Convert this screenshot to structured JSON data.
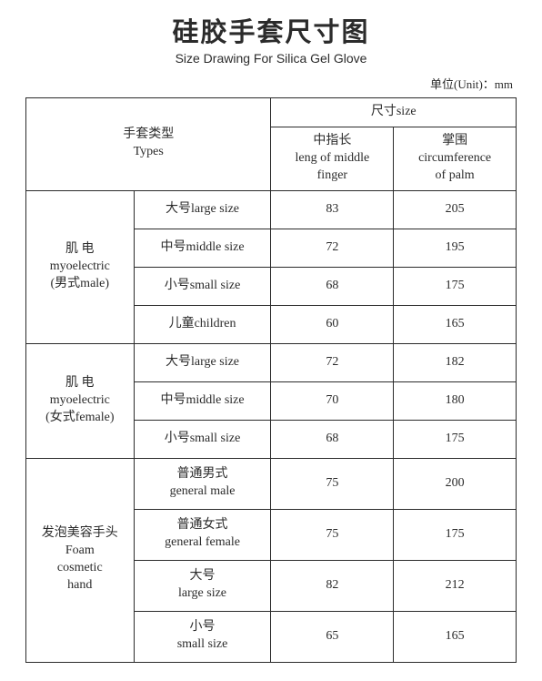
{
  "title_cn": "硅胶手套尺寸图",
  "title_en": "Size Drawing For Silica Gel Glove",
  "unit_label": "单位(Unit)：mm",
  "header": {
    "types_cn": "手套类型",
    "types_en": "Types",
    "size_cn_en": "尺寸size",
    "finger_cn": "中指长",
    "finger_en1": "leng of middle",
    "finger_en2": "finger",
    "palm_cn": "掌围",
    "palm_en1": "circumference",
    "palm_en2": "of palm"
  },
  "groups": [
    {
      "label_l1": "肌 电",
      "label_l2": "myoelectric",
      "label_l3": "(男式male)",
      "rows": [
        {
          "size": "大号large size",
          "finger": "83",
          "palm": "205"
        },
        {
          "size": "中号middle size",
          "finger": "72",
          "palm": "195"
        },
        {
          "size": "小号small size",
          "finger": "68",
          "palm": "175"
        },
        {
          "size": "儿童children",
          "finger": "60",
          "palm": "165"
        }
      ]
    },
    {
      "label_l1": "肌 电",
      "label_l2": "myoelectric",
      "label_l3": "(女式female)",
      "rows": [
        {
          "size": "大号large size",
          "finger": "72",
          "palm": "182"
        },
        {
          "size": "中号middle size",
          "finger": "70",
          "palm": "180"
        },
        {
          "size": "小号small size",
          "finger": "68",
          "palm": "175"
        }
      ]
    },
    {
      "label_l1": "发泡美容手头",
      "label_l2": "Foam",
      "label_l3": "cosmetic",
      "label_l4": "hand",
      "rows": [
        {
          "size_l1": "普通男式",
          "size_l2": "general male",
          "finger": "75",
          "palm": "200"
        },
        {
          "size_l1": "普通女式",
          "size_l2": "general female",
          "finger": "75",
          "palm": "175"
        },
        {
          "size_l1": "大号",
          "size_l2": "large size",
          "finger": "82",
          "palm": "212"
        },
        {
          "size_l1": "小号",
          "size_l2": "small size",
          "finger": "65",
          "palm": "165"
        }
      ]
    }
  ],
  "style": {
    "text_color": "#2b2b2b",
    "border_color": "#2b2b2b",
    "background": "#ffffff",
    "title_fontsize_pt": 22,
    "body_fontsize_pt": 11
  }
}
